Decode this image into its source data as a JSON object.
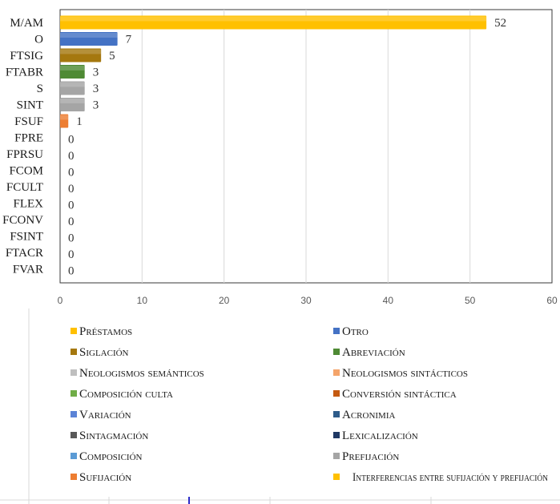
{
  "chart_data": {
    "type": "bar",
    "orientation": "horizontal",
    "categories": [
      "M/AM",
      "O",
      "FTSIG",
      "FTABR",
      "S",
      "SINT",
      "FSUF",
      "FPRE",
      "FPRSU",
      "FCOM",
      "FCULT",
      "FLEX",
      "FCONV",
      "FSINT",
      "FTACR",
      "FVAR"
    ],
    "values": [
      52,
      7,
      5,
      3,
      3,
      3,
      1,
      0,
      0,
      0,
      0,
      0,
      0,
      0,
      0,
      0
    ],
    "colors": [
      "#FFC000",
      "#4472C4",
      "#A5780F",
      "#4E8A34",
      "#A5A5A5",
      "#A5A5A5",
      "#ED7D31",
      "#A5A5A5",
      "#A5A5A5",
      "#A5A5A5",
      "#A5A5A5",
      "#A5A5A5",
      "#A5A5A5",
      "#A5A5A5",
      "#A5A5A5",
      "#A5A5A5"
    ],
    "xlim": [
      0,
      60
    ],
    "xticks": [
      0,
      10,
      20,
      30,
      40,
      50,
      60
    ],
    "grid": true,
    "legend_position": "bottom",
    "legend": [
      {
        "label": "Préstamos",
        "color": "#FFC000"
      },
      {
        "label": "Otro",
        "color": "#4472C4"
      },
      {
        "label": "Siglación",
        "color": "#A5780F"
      },
      {
        "label": "Abreviación",
        "color": "#4E8A34"
      },
      {
        "label": "Neologismos semánticos",
        "color": "#BFBFBF"
      },
      {
        "label": "Neologismos sintácticos",
        "color": "#F4A46A"
      },
      {
        "label": "Composición culta",
        "color": "#70AD47"
      },
      {
        "label": "Conversión sintáctica",
        "color": "#C55A11"
      },
      {
        "label": "Variación",
        "color": "#5B83D6"
      },
      {
        "label": "Acronimia",
        "color": "#2E5C8A"
      },
      {
        "label": "Sintagmación",
        "color": "#595959"
      },
      {
        "label": "Lexicalización",
        "color": "#1F3864"
      },
      {
        "label": "Composición",
        "color": "#5B9BD5"
      },
      {
        "label": "Prefijación",
        "color": "#A5A5A5"
      },
      {
        "label": "Sufijación",
        "color": "#ED7D31"
      },
      {
        "label": "Interferencias entre sufijación y prefijación",
        "color": "#FFC000"
      }
    ]
  }
}
